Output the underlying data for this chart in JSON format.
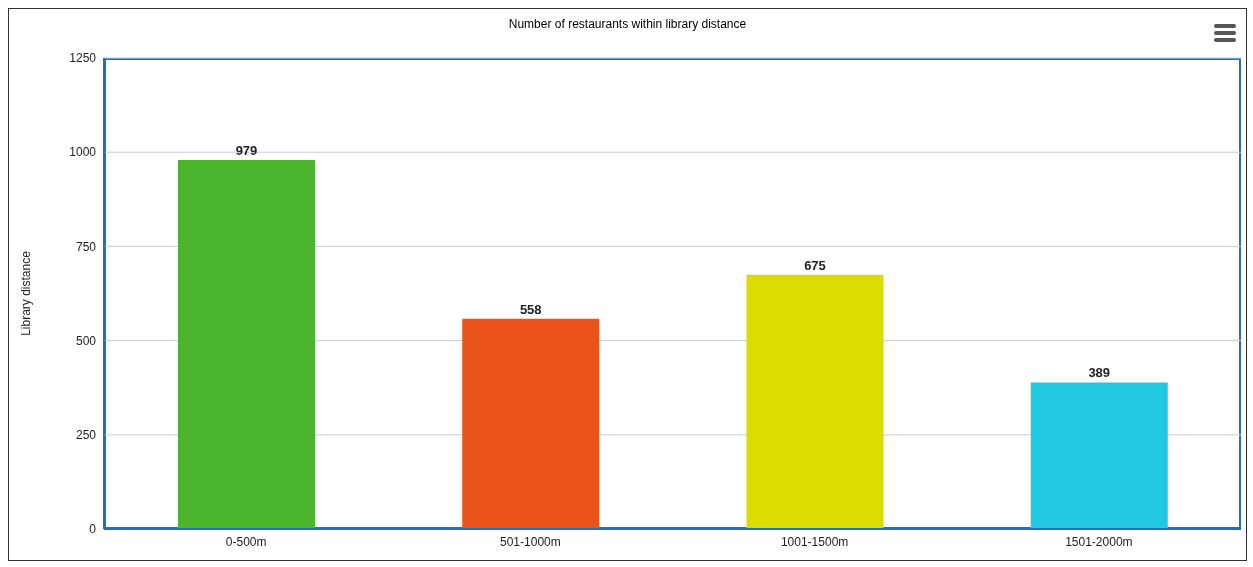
{
  "chart_data": {
    "type": "bar",
    "title": "Number of restaurants within library distance",
    "ylabel": "Library distance",
    "categories": [
      "0-500m",
      "501-1000m",
      "1001-1500m",
      "1501-2000m"
    ],
    "values": [
      979,
      558,
      675,
      389
    ],
    "colors": [
      "#4cb52e",
      "#ea531a",
      "#dcdc00",
      "#22c8e0"
    ],
    "ylim": [
      0,
      1250
    ],
    "yticks": [
      0,
      250,
      500,
      750,
      1000,
      1250
    ],
    "grid": "y",
    "data_labels": true
  }
}
